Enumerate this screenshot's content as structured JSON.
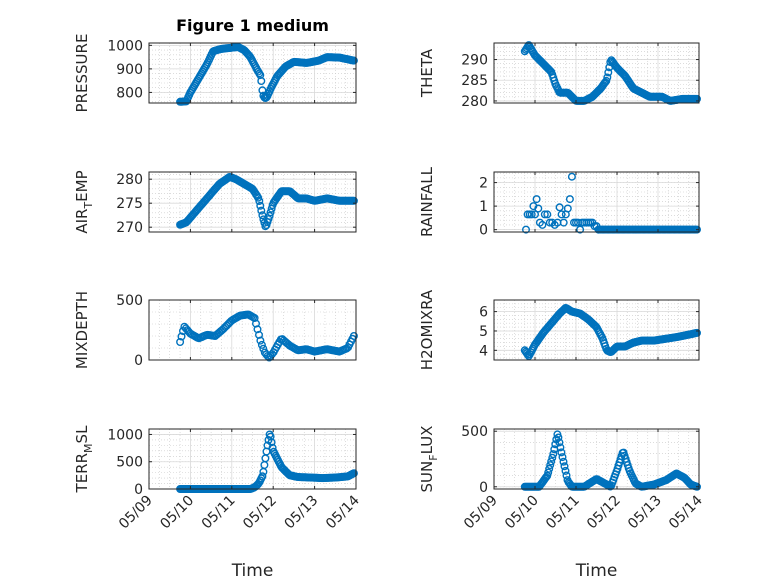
{
  "figure_title": "Figure 1 medium",
  "colors": {
    "marker": "#0072BD",
    "axes": "#262626",
    "grid": "#b0b0b0"
  },
  "chart_data": [
    {
      "type": "scatter",
      "position": "row1-left",
      "ylabel": "PRESSURE",
      "ylabel_sub": null,
      "ylabel_rest": null,
      "ylim": [
        755,
        1010
      ],
      "yticks": [
        800,
        900,
        1000
      ],
      "ytick_labels": [
        "800",
        "900",
        "1000"
      ],
      "xlim": [
        0,
        5
      ],
      "xticks": [
        0,
        1,
        2,
        3,
        4,
        5
      ],
      "xtick_labels": [
        "05/09",
        "05/10",
        "05/11",
        "05/12",
        "05/13",
        "05/14"
      ],
      "show_xtick_labels": false,
      "xlabel": "",
      "title": "Figure 1 medium",
      "x_start": 0.75,
      "x_end": 4.95,
      "points": 170,
      "profile": [
        [
          0.75,
          760
        ],
        [
          0.9,
          762
        ],
        [
          1.0,
          800
        ],
        [
          1.2,
          860
        ],
        [
          1.4,
          920
        ],
        [
          1.55,
          975
        ],
        [
          1.75,
          985
        ],
        [
          2.0,
          990
        ],
        [
          2.15,
          993
        ],
        [
          2.3,
          980
        ],
        [
          2.45,
          950
        ],
        [
          2.6,
          900
        ],
        [
          2.7,
          870
        ],
        [
          2.75,
          790
        ],
        [
          2.8,
          775
        ],
        [
          2.85,
          780
        ],
        [
          2.95,
          820
        ],
        [
          3.1,
          870
        ],
        [
          3.3,
          910
        ],
        [
          3.5,
          930
        ],
        [
          3.8,
          925
        ],
        [
          4.1,
          935
        ],
        [
          4.3,
          950
        ],
        [
          4.6,
          948
        ],
        [
          4.95,
          935
        ]
      ]
    },
    {
      "type": "scatter",
      "position": "row1-right",
      "ylabel": "THETA",
      "ylabel_sub": null,
      "ylabel_rest": null,
      "ylim": [
        279.5,
        294
      ],
      "yticks": [
        280,
        285,
        290
      ],
      "ytick_labels": [
        "280",
        "285",
        "290"
      ],
      "xlim": [
        0,
        5
      ],
      "xticks": [
        0,
        1,
        2,
        3,
        4,
        5
      ],
      "xtick_labels": [
        "05/09",
        "05/10",
        "05/11",
        "05/12",
        "05/13",
        "05/14"
      ],
      "show_xtick_labels": false,
      "xlabel": "",
      "title": "",
      "x_start": 0.75,
      "x_end": 4.95,
      "points": 170,
      "profile": [
        [
          0.75,
          292
        ],
        [
          0.85,
          293.5
        ],
        [
          1.0,
          291
        ],
        [
          1.2,
          289
        ],
        [
          1.4,
          287
        ],
        [
          1.5,
          284
        ],
        [
          1.6,
          282
        ],
        [
          1.8,
          282
        ],
        [
          2.0,
          280
        ],
        [
          2.2,
          280
        ],
        [
          2.4,
          281
        ],
        [
          2.6,
          283
        ],
        [
          2.75,
          285
        ],
        [
          2.85,
          290
        ],
        [
          3.0,
          288
        ],
        [
          3.2,
          286
        ],
        [
          3.4,
          283
        ],
        [
          3.6,
          282
        ],
        [
          3.8,
          281
        ],
        [
          4.1,
          281
        ],
        [
          4.3,
          280
        ],
        [
          4.6,
          280.5
        ],
        [
          4.95,
          280.5
        ]
      ]
    },
    {
      "type": "scatter",
      "position": "row2-left",
      "ylabel": "AIR",
      "ylabel_sub": "T",
      "ylabel_rest": "EMP",
      "ylim": [
        269,
        281.5
      ],
      "yticks": [
        270,
        275,
        280
      ],
      "ytick_labels": [
        "270",
        "275",
        "280"
      ],
      "xlim": [
        0,
        5
      ],
      "xticks": [
        0,
        1,
        2,
        3,
        4,
        5
      ],
      "xtick_labels": [
        "05/09",
        "05/10",
        "05/11",
        "05/12",
        "05/13",
        "05/14"
      ],
      "show_xtick_labels": false,
      "xlabel": "",
      "title": "",
      "x_start": 0.75,
      "x_end": 4.95,
      "points": 170,
      "profile": [
        [
          0.75,
          270.5
        ],
        [
          0.9,
          271
        ],
        [
          1.1,
          273
        ],
        [
          1.3,
          275
        ],
        [
          1.5,
          277
        ],
        [
          1.7,
          279
        ],
        [
          1.95,
          280.5
        ],
        [
          2.1,
          280
        ],
        [
          2.3,
          279
        ],
        [
          2.5,
          278
        ],
        [
          2.65,
          276
        ],
        [
          2.75,
          272
        ],
        [
          2.82,
          270
        ],
        [
          2.9,
          272
        ],
        [
          3.0,
          275
        ],
        [
          3.2,
          277.5
        ],
        [
          3.4,
          277.5
        ],
        [
          3.6,
          276
        ],
        [
          3.8,
          276
        ],
        [
          4.0,
          275.5
        ],
        [
          4.3,
          276
        ],
        [
          4.6,
          275.5
        ],
        [
          4.95,
          275.5
        ]
      ]
    },
    {
      "type": "scatter",
      "position": "row2-right",
      "ylabel": "RAINFALL",
      "ylabel_sub": null,
      "ylabel_rest": null,
      "ylim": [
        -0.1,
        2.45
      ],
      "yticks": [
        0,
        1,
        2
      ],
      "ytick_labels": [
        "0",
        "1",
        "2"
      ],
      "xlim": [
        0,
        5
      ],
      "xticks": [
        0,
        1,
        2,
        3,
        4,
        5
      ],
      "xtick_labels": [
        "05/09",
        "05/10",
        "05/11",
        "05/12",
        "05/13",
        "05/14"
      ],
      "show_xtick_labels": false,
      "xlabel": "",
      "title": "",
      "x_start": 0.75,
      "x_end": 4.95,
      "points": 170,
      "points_xy": [
        [
          0.78,
          0
        ],
        [
          0.82,
          0.65
        ],
        [
          0.87,
          0.65
        ],
        [
          0.92,
          0.65
        ],
        [
          0.96,
          1.0
        ],
        [
          1.0,
          0.65
        ],
        [
          1.04,
          1.3
        ],
        [
          1.08,
          0.9
        ],
        [
          1.12,
          0.3
        ],
        [
          1.18,
          0.2
        ],
        [
          1.24,
          0.65
        ],
        [
          1.3,
          0.65
        ],
        [
          1.36,
          0.3
        ],
        [
          1.42,
          0.3
        ],
        [
          1.48,
          0.2
        ],
        [
          1.55,
          0.3
        ],
        [
          1.6,
          0.95
        ],
        [
          1.65,
          0.65
        ],
        [
          1.7,
          0.3
        ],
        [
          1.75,
          0.65
        ],
        [
          1.8,
          0.9
        ],
        [
          1.85,
          1.3
        ],
        [
          1.9,
          2.25
        ],
        [
          1.95,
          0.3
        ],
        [
          2.0,
          0.3
        ],
        [
          2.05,
          0.3
        ],
        [
          2.1,
          0
        ],
        [
          2.15,
          0.3
        ],
        [
          2.2,
          0.3
        ],
        [
          2.25,
          0.3
        ],
        [
          2.3,
          0.3
        ],
        [
          2.35,
          0.3
        ],
        [
          2.4,
          0.3
        ],
        [
          2.45,
          0.15
        ],
        [
          2.5,
          0.15
        ],
        [
          2.55,
          0
        ]
      ],
      "zero_from": 2.55
    },
    {
      "type": "scatter",
      "position": "row3-left",
      "ylabel": "MIXDEPTH",
      "ylabel_sub": null,
      "ylabel_rest": null,
      "ylim": [
        0,
        500
      ],
      "yticks": [
        0,
        500
      ],
      "ytick_labels": [
        "0",
        "500"
      ],
      "xlim": [
        0,
        5
      ],
      "xticks": [
        0,
        1,
        2,
        3,
        4,
        5
      ],
      "xtick_labels": [
        "05/09",
        "05/10",
        "05/11",
        "05/12",
        "05/13",
        "05/14"
      ],
      "show_xtick_labels": false,
      "xlabel": "",
      "title": "",
      "x_start": 0.75,
      "x_end": 4.95,
      "points": 120,
      "profile": [
        [
          0.75,
          150
        ],
        [
          0.85,
          280
        ],
        [
          1.0,
          220
        ],
        [
          1.2,
          180
        ],
        [
          1.4,
          210
        ],
        [
          1.6,
          200
        ],
        [
          1.8,
          260
        ],
        [
          2.0,
          330
        ],
        [
          2.2,
          370
        ],
        [
          2.4,
          380
        ],
        [
          2.55,
          350
        ],
        [
          2.7,
          150
        ],
        [
          2.8,
          60
        ],
        [
          2.9,
          20
        ],
        [
          3.0,
          60
        ],
        [
          3.2,
          180
        ],
        [
          3.4,
          120
        ],
        [
          3.6,
          80
        ],
        [
          3.8,
          90
        ],
        [
          4.0,
          70
        ],
        [
          4.3,
          90
        ],
        [
          4.6,
          70
        ],
        [
          4.8,
          100
        ],
        [
          4.95,
          200
        ]
      ]
    },
    {
      "type": "scatter",
      "position": "row3-right",
      "ylabel": "H2OMIXRA",
      "ylabel_sub": null,
      "ylabel_rest": null,
      "ylim": [
        3.5,
        6.6
      ],
      "yticks": [
        4,
        5,
        6
      ],
      "ytick_labels": [
        "4",
        "5",
        "6"
      ],
      "xlim": [
        0,
        5
      ],
      "xticks": [
        0,
        1,
        2,
        3,
        4,
        5
      ],
      "xtick_labels": [
        "05/09",
        "05/10",
        "05/11",
        "05/12",
        "05/13",
        "05/14"
      ],
      "show_xtick_labels": false,
      "xlabel": "",
      "title": "",
      "x_start": 0.75,
      "x_end": 4.95,
      "points": 170,
      "profile": [
        [
          0.75,
          4.0
        ],
        [
          0.85,
          3.7
        ],
        [
          1.0,
          4.3
        ],
        [
          1.2,
          4.9
        ],
        [
          1.4,
          5.4
        ],
        [
          1.6,
          5.9
        ],
        [
          1.75,
          6.2
        ],
        [
          1.9,
          6.0
        ],
        [
          2.1,
          5.9
        ],
        [
          2.3,
          5.6
        ],
        [
          2.5,
          5.2
        ],
        [
          2.65,
          4.6
        ],
        [
          2.75,
          4.0
        ],
        [
          2.85,
          3.9
        ],
        [
          3.0,
          4.2
        ],
        [
          3.2,
          4.2
        ],
        [
          3.4,
          4.4
        ],
        [
          3.6,
          4.5
        ],
        [
          3.9,
          4.5
        ],
        [
          4.2,
          4.6
        ],
        [
          4.5,
          4.7
        ],
        [
          4.95,
          4.9
        ]
      ]
    },
    {
      "type": "scatter",
      "position": "row4-left",
      "ylabel": "TERR",
      "ylabel_sub": "M",
      "ylabel_rest": "SL",
      "ylim": [
        0,
        1100
      ],
      "yticks": [
        0,
        500,
        1000
      ],
      "ytick_labels": [
        "0",
        "500",
        "1000"
      ],
      "xlim": [
        0,
        5
      ],
      "xticks": [
        0,
        1,
        2,
        3,
        4,
        5
      ],
      "xtick_labels": [
        "05/09",
        "05/10",
        "05/11",
        "05/12",
        "05/13",
        "05/14"
      ],
      "show_xtick_labels": true,
      "xlabel": "Time",
      "title": "",
      "x_start": 0.75,
      "x_end": 4.95,
      "points": 170,
      "profile": [
        [
          0.75,
          0
        ],
        [
          2.45,
          0
        ],
        [
          2.55,
          30
        ],
        [
          2.65,
          100
        ],
        [
          2.75,
          250
        ],
        [
          2.85,
          750
        ],
        [
          2.92,
          1030
        ],
        [
          3.0,
          700
        ],
        [
          3.2,
          400
        ],
        [
          3.4,
          250
        ],
        [
          3.6,
          220
        ],
        [
          3.9,
          210
        ],
        [
          4.2,
          200
        ],
        [
          4.5,
          210
        ],
        [
          4.8,
          230
        ],
        [
          4.95,
          290
        ]
      ]
    },
    {
      "type": "scatter",
      "position": "row4-right",
      "ylabel": "SUN",
      "ylabel_sub": "F",
      "ylabel_rest": "LUX",
      "ylim": [
        -20,
        520
      ],
      "yticks": [
        0,
        500
      ],
      "ytick_labels": [
        "0",
        "500"
      ],
      "xlim": [
        0,
        5
      ],
      "xticks": [
        0,
        1,
        2,
        3,
        4,
        5
      ],
      "xtick_labels": [
        "05/09",
        "05/10",
        "05/11",
        "05/12",
        "05/13",
        "05/14"
      ],
      "show_xtick_labels": true,
      "xlabel": "Time",
      "title": "",
      "x_start": 0.75,
      "x_end": 4.95,
      "points": 170,
      "profile": [
        [
          0.75,
          0
        ],
        [
          1.1,
          0
        ],
        [
          1.3,
          100
        ],
        [
          1.45,
          300
        ],
        [
          1.55,
          480
        ],
        [
          1.65,
          300
        ],
        [
          1.8,
          50
        ],
        [
          1.9,
          0
        ],
        [
          2.2,
          0
        ],
        [
          2.5,
          70
        ],
        [
          2.7,
          30
        ],
        [
          2.85,
          0
        ],
        [
          3.0,
          150
        ],
        [
          3.15,
          320
        ],
        [
          3.3,
          150
        ],
        [
          3.45,
          30
        ],
        [
          3.6,
          0
        ],
        [
          3.9,
          20
        ],
        [
          4.2,
          60
        ],
        [
          4.45,
          120
        ],
        [
          4.65,
          80
        ],
        [
          4.8,
          20
        ],
        [
          4.95,
          0
        ]
      ]
    }
  ]
}
